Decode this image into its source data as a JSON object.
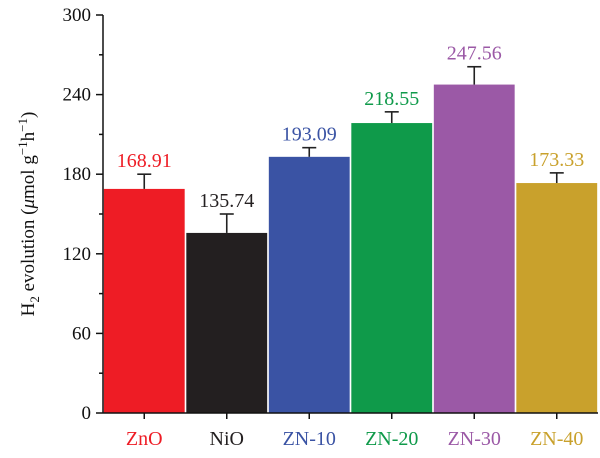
{
  "chart_data": {
    "type": "bar",
    "categories": [
      "ZnO",
      "NiO",
      "ZN-10",
      "ZN-20",
      "ZN-30",
      "ZN-40"
    ],
    "values": [
      168.91,
      135.74,
      193.09,
      218.55,
      247.56,
      173.33
    ],
    "value_labels": [
      "168.91",
      "135.74",
      "193.09",
      "218.55",
      "247.56",
      "173.33"
    ],
    "error_upper": [
      180,
      150,
      200,
      227,
      261,
      181
    ],
    "colors": [
      "#ee1c25",
      "#231f20",
      "#3a53a4",
      "#0f9a4a",
      "#9b59a6",
      "#c9a12c"
    ],
    "label_colors": [
      "#ee1c25",
      "#231f20",
      "#3a53a4",
      "#0f9a4a",
      "#9b59a6",
      "#c9a12c"
    ],
    "ylim": [
      0,
      300
    ],
    "yticks": [
      0,
      60,
      120,
      180,
      240,
      300
    ],
    "ylabel_parts": [
      "H",
      "2",
      " evolution (",
      "μ",
      "mol g",
      "−1",
      "h",
      "−1",
      ")"
    ],
    "xlabel": "",
    "title": "",
    "grid": false
  }
}
